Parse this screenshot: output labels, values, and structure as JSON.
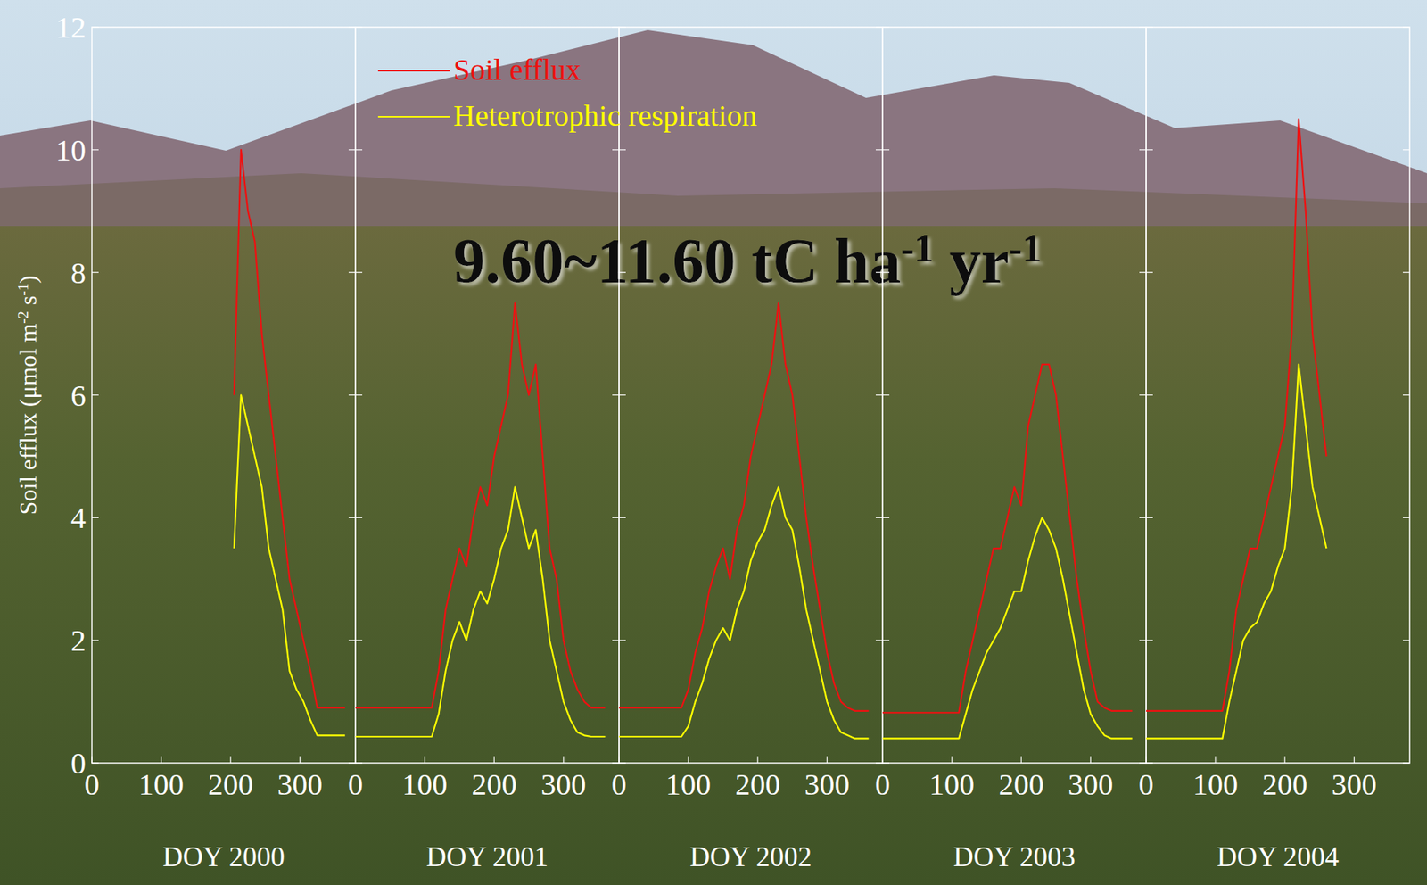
{
  "chart_data": [
    {
      "type": "line",
      "xlabel": "DOY 2000",
      "ylabel": "Soil efflux (μmol m-2 s-1)",
      "xlim": [
        0,
        380
      ],
      "ylim": [
        0,
        12
      ],
      "xticks": [
        0,
        100,
        200,
        300
      ],
      "yticks": [
        0,
        2,
        4,
        6,
        8,
        10,
        12
      ],
      "x": [
        205,
        215,
        225,
        235,
        245,
        255,
        265,
        275,
        285,
        295,
        305,
        315,
        325,
        335,
        345,
        355,
        365
      ],
      "series": [
        {
          "color": "#ee1111",
          "values": [
            6,
            10,
            9,
            8.5,
            7,
            6,
            5,
            4,
            3,
            2.5,
            2,
            1.5,
            0.9,
            0.9,
            0.9,
            0.9,
            0.9
          ]
        },
        {
          "color": "#ffff00",
          "values": [
            3.5,
            6,
            5.5,
            5,
            4.5,
            3.5,
            3,
            2.5,
            1.5,
            1.2,
            1,
            0.7,
            0.45,
            0.45,
            0.45,
            0.45,
            0.45
          ]
        }
      ]
    },
    {
      "type": "line",
      "xlabel": "DOY 2001",
      "legend": "top-left",
      "annotation": "9.60~11.60 tC ha-1 yr-1",
      "xlim": [
        0,
        380
      ],
      "ylim": [
        0,
        12
      ],
      "xticks": [
        0,
        100,
        200,
        300
      ],
      "yticks": [
        0,
        2,
        4,
        6,
        8,
        10,
        12
      ],
      "tick_labels": "x",
      "x": [
        0,
        10,
        20,
        30,
        40,
        50,
        60,
        70,
        80,
        90,
        100,
        110,
        120,
        130,
        140,
        150,
        160,
        170,
        180,
        190,
        200,
        210,
        220,
        230,
        240,
        250,
        260,
        270,
        280,
        290,
        300,
        310,
        320,
        330,
        340,
        350,
        360
      ],
      "series": [
        {
          "name": "Soil efflux",
          "color": "#ee1111",
          "values": [
            0.9,
            0.9,
            0.9,
            0.9,
            0.9,
            0.9,
            0.9,
            0.9,
            0.9,
            0.9,
            0.9,
            0.9,
            1.5,
            2.5,
            3,
            3.5,
            3.2,
            4,
            4.5,
            4.2,
            5,
            5.5,
            6,
            7.5,
            6.5,
            6,
            6.5,
            5,
            3.5,
            3,
            2,
            1.5,
            1.2,
            1,
            0.9,
            0.9,
            0.9
          ]
        },
        {
          "name": "Heterotrophic respiration",
          "color": "#ffff00",
          "values": [
            0.43,
            0.43,
            0.43,
            0.43,
            0.43,
            0.43,
            0.43,
            0.43,
            0.43,
            0.43,
            0.43,
            0.43,
            0.8,
            1.5,
            2,
            2.3,
            2,
            2.5,
            2.8,
            2.6,
            3,
            3.5,
            3.8,
            4.5,
            4,
            3.5,
            3.8,
            3,
            2,
            1.5,
            1,
            0.7,
            0.5,
            0.45,
            0.43,
            0.43,
            0.43
          ]
        }
      ]
    },
    {
      "type": "line",
      "xlabel": "DOY 2002",
      "xlim": [
        0,
        380
      ],
      "ylim": [
        0,
        12
      ],
      "xticks": [
        0,
        100,
        200,
        300
      ],
      "yticks": [
        0,
        2,
        4,
        6,
        8,
        10,
        12
      ],
      "tick_labels": "x",
      "x": [
        0,
        10,
        20,
        30,
        40,
        50,
        60,
        70,
        80,
        90,
        100,
        110,
        120,
        130,
        140,
        150,
        160,
        170,
        180,
        190,
        200,
        210,
        220,
        230,
        240,
        250,
        260,
        270,
        280,
        290,
        300,
        310,
        320,
        330,
        340,
        350,
        360
      ],
      "series": [
        {
          "color": "#ee1111",
          "values": [
            0.9,
            0.9,
            0.9,
            0.9,
            0.9,
            0.9,
            0.9,
            0.9,
            0.9,
            0.9,
            1.2,
            1.8,
            2.2,
            2.8,
            3.2,
            3.5,
            3,
            3.8,
            4.2,
            5,
            5.5,
            6,
            6.5,
            7.5,
            6.5,
            6,
            5,
            4,
            3.2,
            2.5,
            1.8,
            1.3,
            1,
            0.9,
            0.85,
            0.85,
            0.85
          ]
        },
        {
          "color": "#ffff00",
          "values": [
            0.43,
            0.43,
            0.43,
            0.43,
            0.43,
            0.43,
            0.43,
            0.43,
            0.43,
            0.43,
            0.6,
            1,
            1.3,
            1.7,
            2,
            2.2,
            2,
            2.5,
            2.8,
            3.3,
            3.6,
            3.8,
            4.2,
            4.5,
            4,
            3.8,
            3.2,
            2.5,
            2,
            1.5,
            1,
            0.7,
            0.5,
            0.45,
            0.4,
            0.4,
            0.4
          ]
        }
      ]
    },
    {
      "type": "line",
      "xlabel": "DOY 2003",
      "xlim": [
        0,
        380
      ],
      "ylim": [
        0,
        12
      ],
      "xticks": [
        0,
        100,
        200,
        300
      ],
      "yticks": [
        0,
        2,
        4,
        6,
        8,
        10,
        12
      ],
      "tick_labels": "x",
      "x": [
        0,
        10,
        20,
        30,
        40,
        50,
        60,
        70,
        80,
        90,
        100,
        110,
        120,
        130,
        140,
        150,
        160,
        170,
        180,
        190,
        200,
        210,
        220,
        230,
        240,
        250,
        260,
        270,
        280,
        290,
        300,
        310,
        320,
        330,
        340,
        350,
        360
      ],
      "series": [
        {
          "color": "#ee1111",
          "values": [
            0.82,
            0.82,
            0.82,
            0.82,
            0.82,
            0.82,
            0.82,
            0.82,
            0.82,
            0.82,
            0.82,
            0.82,
            1.5,
            2,
            2.5,
            3,
            3.5,
            3.5,
            4,
            4.5,
            4.2,
            5.5,
            6,
            6.5,
            6.5,
            6,
            5,
            4,
            3,
            2.2,
            1.5,
            1,
            0.9,
            0.85,
            0.85,
            0.85,
            0.85
          ]
        },
        {
          "color": "#ffff00",
          "values": [
            0.4,
            0.4,
            0.4,
            0.4,
            0.4,
            0.4,
            0.4,
            0.4,
            0.4,
            0.4,
            0.4,
            0.4,
            0.8,
            1.2,
            1.5,
            1.8,
            2,
            2.2,
            2.5,
            2.8,
            2.8,
            3.3,
            3.7,
            4,
            3.8,
            3.5,
            3,
            2.4,
            1.8,
            1.2,
            0.8,
            0.6,
            0.45,
            0.4,
            0.4,
            0.4,
            0.4
          ]
        }
      ]
    },
    {
      "type": "line",
      "xlabel": "DOY 2004",
      "xlim": [
        0,
        380
      ],
      "ylim": [
        0,
        12
      ],
      "xticks": [
        0,
        100,
        200,
        300
      ],
      "yticks": [
        0,
        2,
        4,
        6,
        8,
        10,
        12
      ],
      "tick_labels": "x",
      "x": [
        0,
        10,
        20,
        30,
        40,
        50,
        60,
        70,
        80,
        90,
        100,
        110,
        120,
        130,
        140,
        150,
        160,
        170,
        180,
        190,
        200,
        210,
        220,
        230,
        240,
        250,
        260
      ],
      "series": [
        {
          "color": "#ee1111",
          "values": [
            0.85,
            0.85,
            0.85,
            0.85,
            0.85,
            0.85,
            0.85,
            0.85,
            0.85,
            0.85,
            0.85,
            0.85,
            1.5,
            2.5,
            3,
            3.5,
            3.5,
            4,
            4.5,
            5,
            5.5,
            7,
            10.5,
            9,
            7,
            6,
            5
          ]
        },
        {
          "color": "#ffff00",
          "values": [
            0.4,
            0.4,
            0.4,
            0.4,
            0.4,
            0.4,
            0.4,
            0.4,
            0.4,
            0.4,
            0.4,
            0.4,
            1,
            1.5,
            2,
            2.2,
            2.3,
            2.6,
            2.8,
            3.2,
            3.5,
            4.5,
            6.5,
            5.5,
            4.5,
            4,
            3.5
          ]
        }
      ]
    }
  ]
}
